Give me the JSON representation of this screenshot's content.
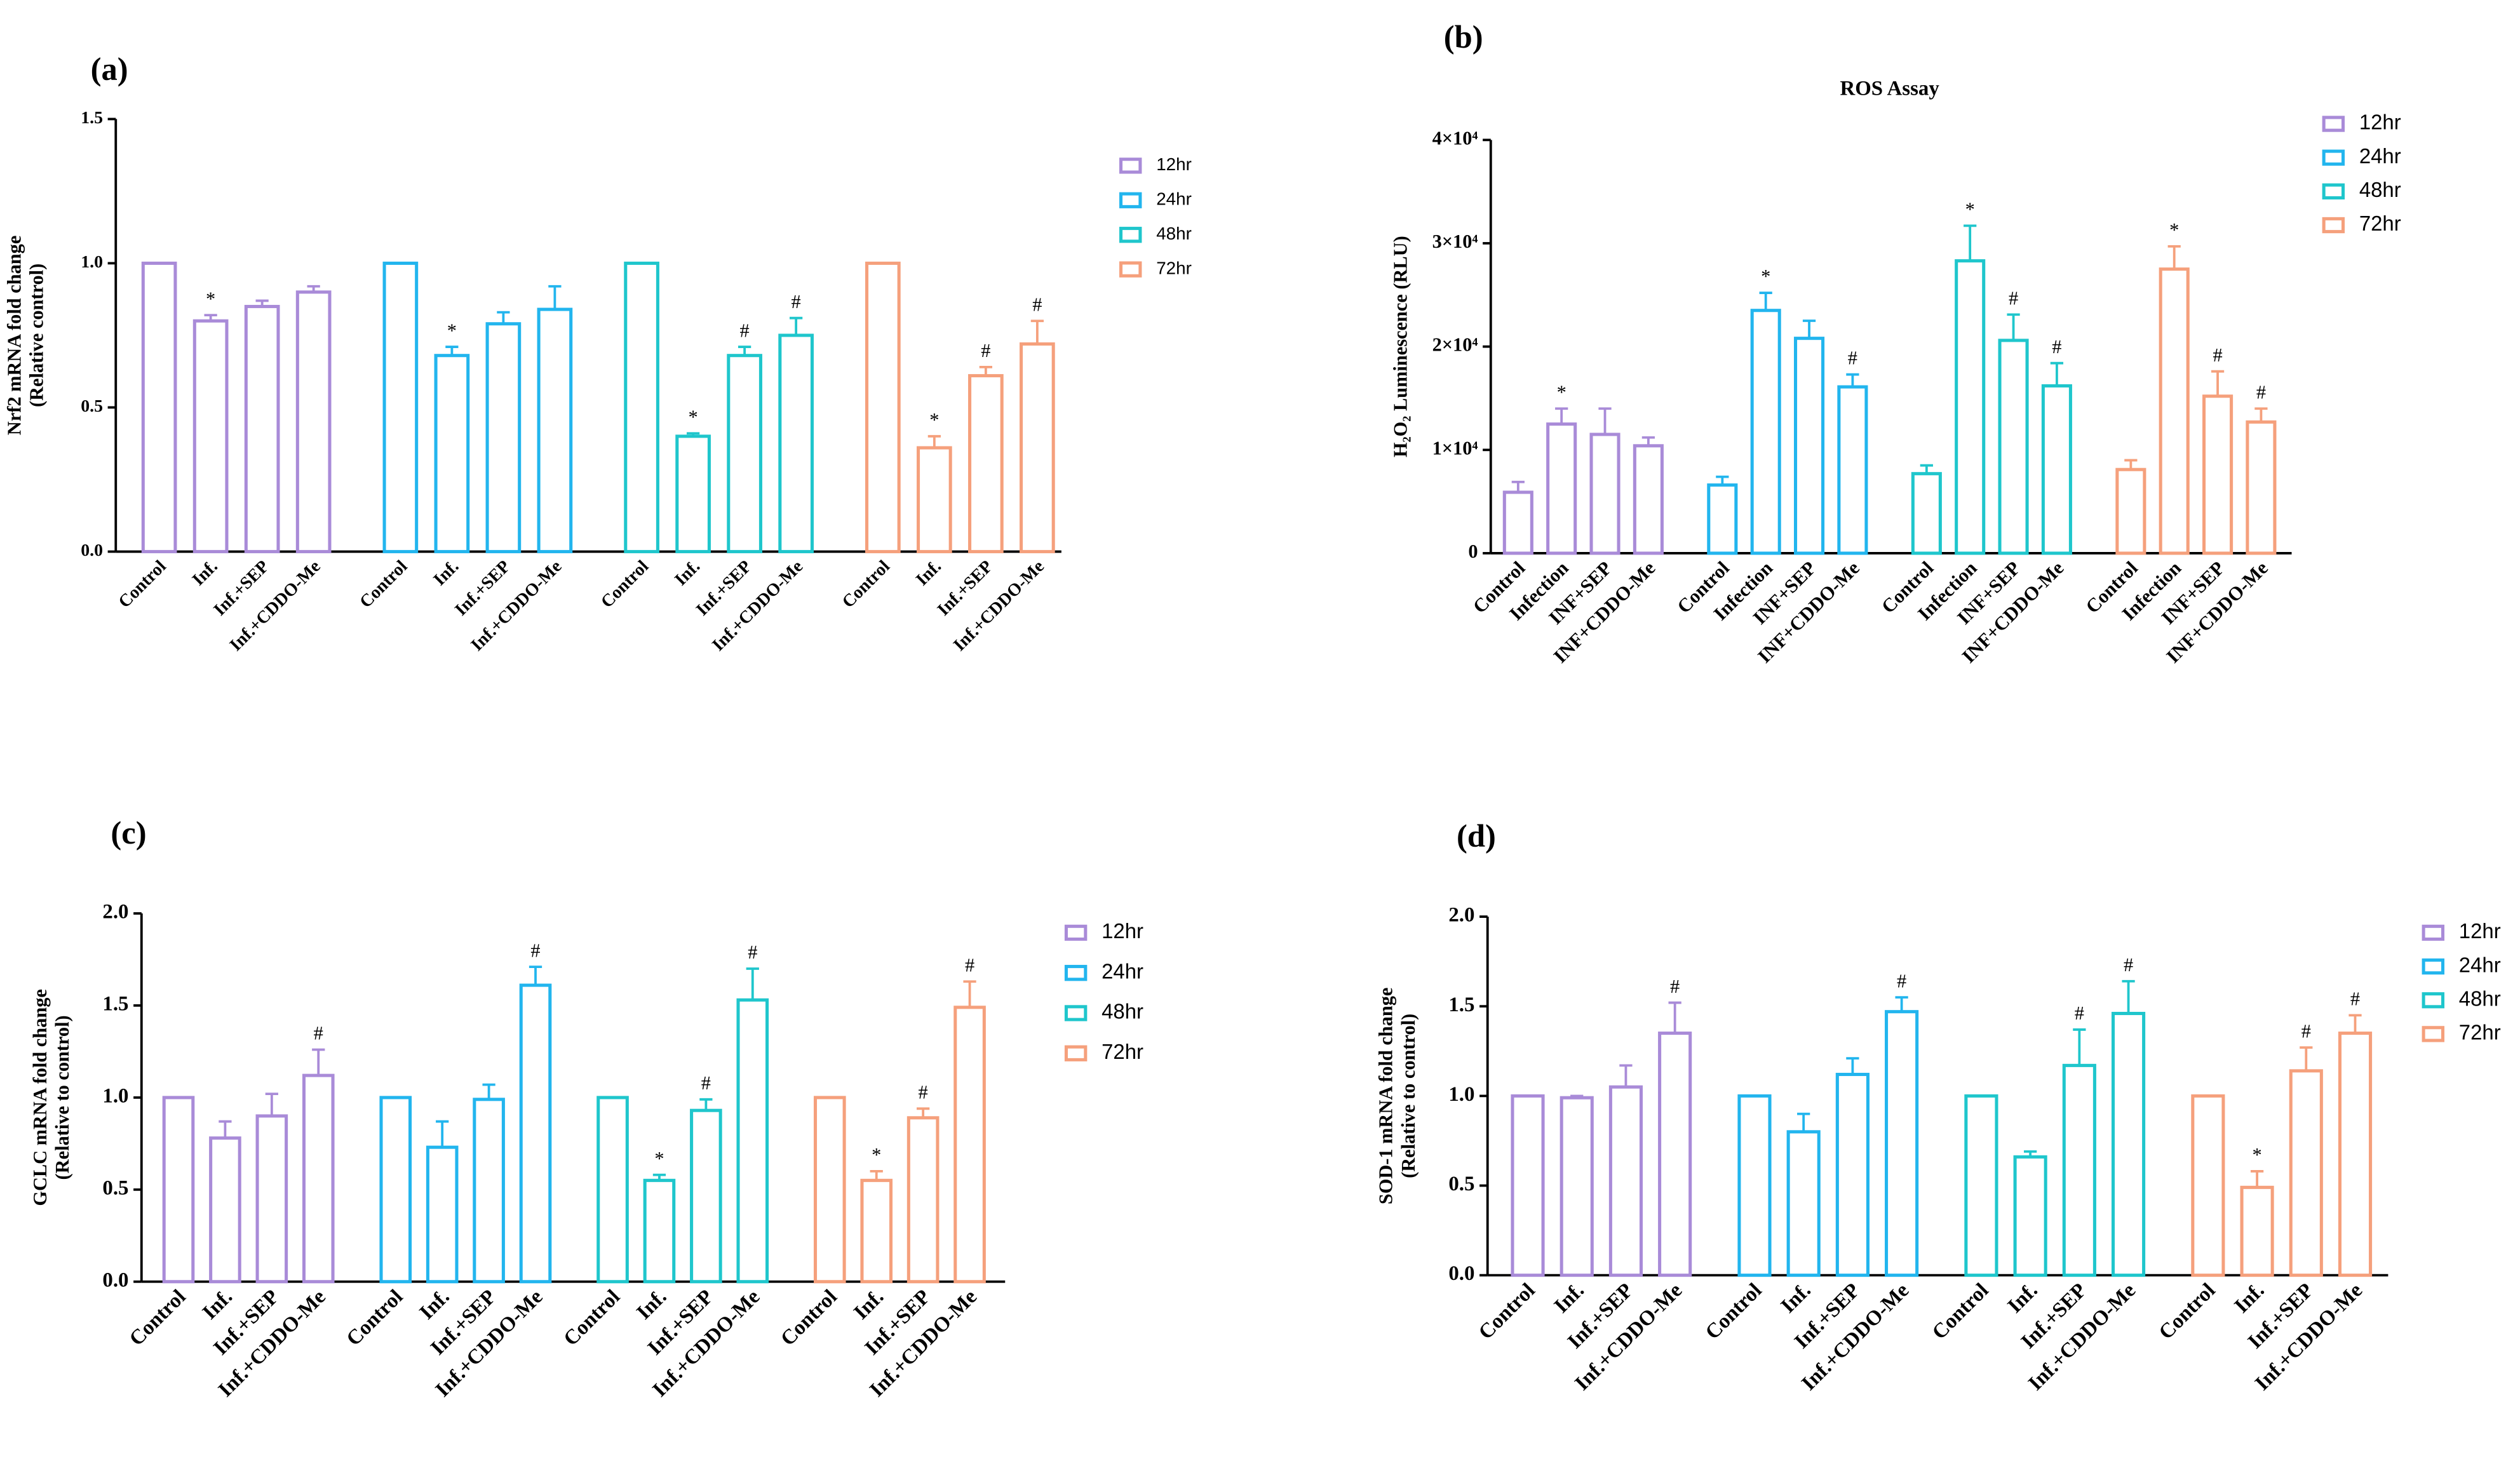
{
  "chart_data": [
    {
      "type": "bar",
      "panel": "(a)",
      "y_label": [
        "Nrf2 mRNA fold change",
        "(Relative control)"
      ],
      "categories": [
        "Control",
        "Inf.",
        "Inf.+SEP",
        "Inf.+CDDO-Me"
      ],
      "ylim": [
        0,
        1.5
      ],
      "yticks": [
        {
          "value": 0,
          "label": "0.0"
        },
        0.5,
        {
          "value": 1,
          "label": "1.0"
        },
        1.5
      ],
      "series": [
        {
          "name": "12hr",
          "color": "#a98bd8",
          "values": [
            1.0,
            0.8,
            0.85,
            0.9
          ],
          "errors": [
            0,
            0.02,
            0.02,
            0.02
          ],
          "annotations": [
            null,
            "*",
            null,
            null
          ]
        },
        {
          "name": "24hr",
          "color": "#22b5ee",
          "values": [
            1.0,
            0.68,
            0.79,
            0.84
          ],
          "errors": [
            0,
            0.03,
            0.04,
            0.08
          ],
          "annotations": [
            null,
            "*",
            null,
            null
          ]
        },
        {
          "name": "48hr",
          "color": "#1fc6cc",
          "values": [
            1.0,
            0.4,
            0.68,
            0.75
          ],
          "errors": [
            0,
            0.01,
            0.03,
            0.06
          ],
          "annotations": [
            null,
            "*",
            "#",
            "#"
          ]
        },
        {
          "name": "72hr",
          "color": "#f5a07c",
          "values": [
            1.0,
            0.36,
            0.61,
            0.72
          ],
          "errors": [
            0,
            0.04,
            0.03,
            0.08
          ],
          "annotations": [
            null,
            "*",
            "#",
            "#"
          ]
        }
      ]
    },
    {
      "type": "bar",
      "panel": "(b)",
      "title": "ROS Assay",
      "y_label": [
        "H₂O₂ Luminescence (RLU)"
      ],
      "categories": [
        "Control",
        "Infection",
        "INF+SEP",
        "INF+CDDO-Me"
      ],
      "ylim": [
        0,
        40000
      ],
      "yticks": [
        0,
        {
          "value": 10000,
          "label": "1×10⁴"
        },
        {
          "value": 20000,
          "label": "2×10⁴"
        },
        {
          "value": 30000,
          "label": "3×10⁴"
        },
        {
          "value": 40000,
          "label": "4×10⁴"
        }
      ],
      "series": [
        {
          "name": "12hr",
          "color": "#a98bd8",
          "values": [
            5900,
            12500,
            11500,
            10400
          ],
          "errors": [
            1000,
            1500,
            2500,
            800
          ],
          "annotations": [
            null,
            "*",
            null,
            null
          ]
        },
        {
          "name": "24hr",
          "color": "#22b5ee",
          "values": [
            6600,
            23500,
            20800,
            16100
          ],
          "errors": [
            800,
            1700,
            1700,
            1200
          ],
          "annotations": [
            null,
            "*",
            null,
            "#"
          ]
        },
        {
          "name": "48hr",
          "color": "#1fc6cc",
          "values": [
            7700,
            28300,
            20600,
            16200
          ],
          "errors": [
            800,
            3400,
            2500,
            2200
          ],
          "annotations": [
            null,
            "*",
            "#",
            "#"
          ]
        },
        {
          "name": "72hr",
          "color": "#f5a07c",
          "values": [
            8100,
            27500,
            15200,
            12700
          ],
          "errors": [
            900,
            2200,
            2400,
            1300
          ],
          "annotations": [
            null,
            "*",
            "#",
            "#"
          ]
        }
      ]
    },
    {
      "type": "bar",
      "panel": "(c)",
      "y_label": [
        "GCLC mRNA fold change",
        "(Relative to control)"
      ],
      "categories": [
        "Control",
        "Inf.",
        "Inf.+SEP",
        "Inf.+CDDO-Me"
      ],
      "ylim": [
        0,
        2
      ],
      "yticks": [
        {
          "value": 0,
          "label": "0.0"
        },
        0.5,
        {
          "value": 1,
          "label": "1.0"
        },
        1.5,
        {
          "value": 2,
          "label": "2.0"
        }
      ],
      "series": [
        {
          "name": "12hr",
          "color": "#a98bd8",
          "values": [
            1.0,
            0.78,
            0.9,
            1.12
          ],
          "errors": [
            0,
            0.09,
            0.12,
            0.14
          ],
          "annotations": [
            null,
            null,
            null,
            "#"
          ]
        },
        {
          "name": "24hr",
          "color": "#22b5ee",
          "values": [
            1.0,
            0.73,
            0.99,
            1.61
          ],
          "errors": [
            0,
            0.14,
            0.08,
            0.1
          ],
          "annotations": [
            null,
            null,
            null,
            "#"
          ]
        },
        {
          "name": "48hr",
          "color": "#1fc6cc",
          "values": [
            1.0,
            0.55,
            0.93,
            1.53
          ],
          "errors": [
            0,
            0.03,
            0.06,
            0.17
          ],
          "annotations": [
            null,
            "*",
            "#",
            "#"
          ]
        },
        {
          "name": "72hr",
          "color": "#f5a07c",
          "values": [
            1.0,
            0.55,
            0.89,
            1.49
          ],
          "errors": [
            0,
            0.05,
            0.05,
            0.14
          ],
          "annotations": [
            null,
            "*",
            "#",
            "#"
          ]
        }
      ]
    },
    {
      "type": "bar",
      "panel": "(d)",
      "y_label": [
        "SOD-1 mRNA fold change",
        "(Relative to control)"
      ],
      "categories": [
        "Control",
        "Inf.",
        "Inf.+SEP",
        "Inf.+CDDO-Me"
      ],
      "ylim": [
        0,
        2
      ],
      "yticks": [
        {
          "value": 0,
          "label": "0.0"
        },
        0.5,
        {
          "value": 1,
          "label": "1.0"
        },
        1.5,
        {
          "value": 2,
          "label": "2.0"
        }
      ],
      "series": [
        {
          "name": "12hr",
          "color": "#a98bd8",
          "values": [
            1.0,
            0.99,
            1.05,
            1.35
          ],
          "errors": [
            0,
            0.01,
            0.12,
            0.17
          ],
          "annotations": [
            null,
            null,
            null,
            "#"
          ]
        },
        {
          "name": "24hr",
          "color": "#22b5ee",
          "values": [
            1.0,
            0.8,
            1.12,
            1.47
          ],
          "errors": [
            0,
            0.1,
            0.09,
            0.08
          ],
          "annotations": [
            null,
            null,
            null,
            "#"
          ]
        },
        {
          "name": "48hr",
          "color": "#1fc6cc",
          "values": [
            1.0,
            0.66,
            1.17,
            1.46
          ],
          "errors": [
            0,
            0.03,
            0.2,
            0.18
          ],
          "annotations": [
            null,
            null,
            "#",
            "#"
          ]
        },
        {
          "name": "72hr",
          "color": "#f5a07c",
          "values": [
            1.0,
            0.49,
            1.14,
            1.35
          ],
          "errors": [
            0,
            0.09,
            0.13,
            0.1
          ],
          "annotations": [
            null,
            "*",
            "#",
            "#"
          ]
        }
      ]
    }
  ]
}
